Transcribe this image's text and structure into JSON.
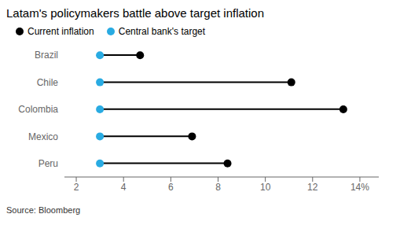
{
  "chart_data": {
    "type": "dumbbell",
    "title": "Latam's policymakers battle above target inflation",
    "source": "Source: Bloomberg",
    "orientation": "horizontal",
    "categories": [
      "Brazil",
      "Chile",
      "Colombia",
      "Mexico",
      "Peru"
    ],
    "series": [
      {
        "name": "Current inflation",
        "color": "#000000",
        "values": [
          4.7,
          11.1,
          13.3,
          6.9,
          8.4
        ]
      },
      {
        "name": "Central bank's target",
        "color": "#29ABE2",
        "values": [
          3.0,
          3.0,
          3.0,
          3.0,
          3.0
        ]
      }
    ],
    "xlim": [
      1.5,
      14.8
    ],
    "xticks": [
      2,
      4,
      6,
      8,
      10,
      12,
      {
        "value": 14,
        "label": "14%"
      }
    ],
    "grid": false,
    "legend": "upper left"
  }
}
